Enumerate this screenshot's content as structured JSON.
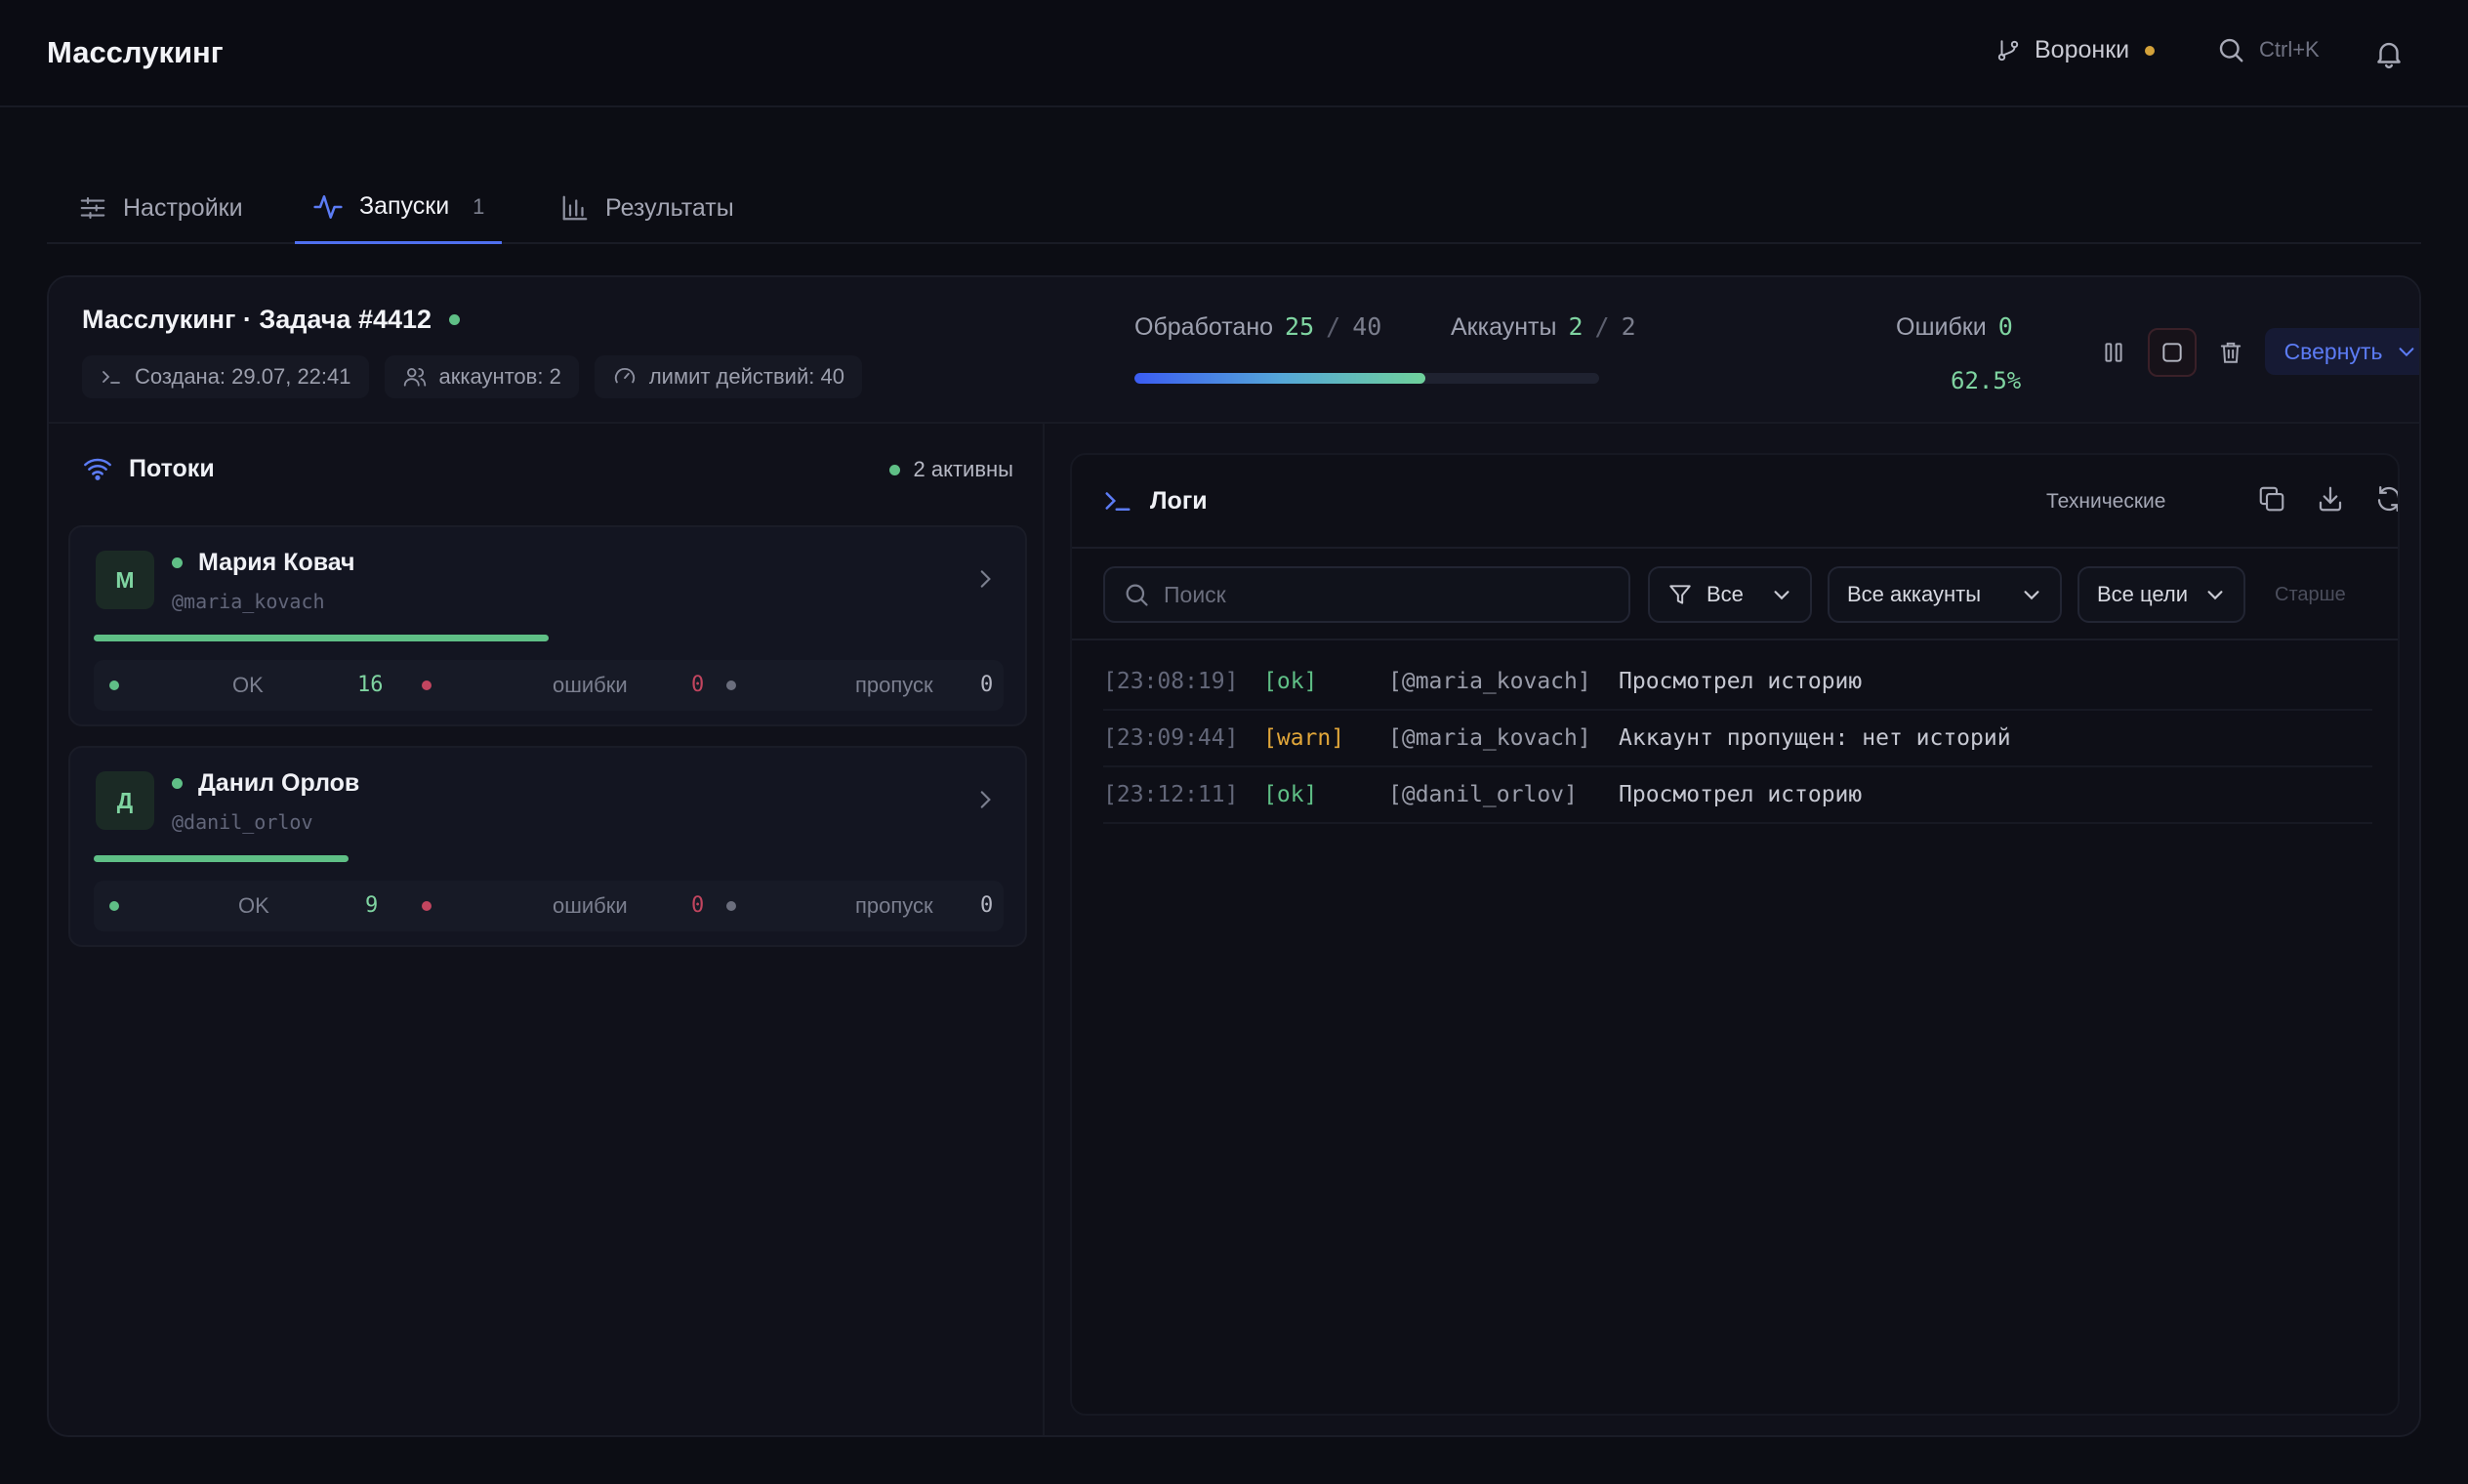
{
  "app": {
    "title": "Масслукинг"
  },
  "topbar": {
    "funnels_label": "Воронки",
    "search_shortcut": "Ctrl+K",
    "funnel_status_color": "#d4a23a"
  },
  "tabs": [
    {
      "label": "Настройки",
      "icon": "sliders-icon"
    },
    {
      "label": "Запуски",
      "icon": "activity-icon",
      "count": "1",
      "active": true
    },
    {
      "label": "Результаты",
      "icon": "bar-chart-icon"
    }
  ],
  "task": {
    "title": "Масслукинг · Задача #4412",
    "chips": {
      "created": "Создана: 29.07, 22:41",
      "accounts": "аккаунтов: 2",
      "limit": "лимит действий: 40"
    },
    "processed_label": "Обработано",
    "processed": "25",
    "processed_total": "40",
    "accounts_label": "Аккаунты",
    "accounts_value": "2",
    "accounts_total": "2",
    "errors_label": "Ошибки",
    "errors_value": "0",
    "percent": "62.5%",
    "progress": 0.625,
    "collapse_label": "Свернуть"
  },
  "threads": {
    "title": "Потоки",
    "active_label": "2 активны",
    "items": [
      {
        "initial": "М",
        "name": "Мария Ковач",
        "handle": "@maria_kovach",
        "progress": 0.5,
        "ok_label": "OK",
        "ok": "16",
        "err_label": "ошибки",
        "err": "0",
        "skip_label": "пропуск",
        "skip": "0"
      },
      {
        "initial": "Д",
        "name": "Данил Орлов",
        "handle": "@danil_orlov",
        "progress": 0.28,
        "ok_label": "OK",
        "ok": "9",
        "err_label": "ошибки",
        "err": "0",
        "skip_label": "пропуск",
        "skip": "0"
      }
    ]
  },
  "logs": {
    "title": "Логи",
    "technical_label": "Технические",
    "search_placeholder": "Поиск",
    "filter_level": "Все",
    "filter_accounts": "Все аккаунты",
    "filter_targets": "Все цели",
    "older_label": "Старше",
    "entries": [
      {
        "time": "[23:08:19]",
        "level": "[ok]",
        "account": "[@maria_kovach]",
        "message": "Просмотрел историю"
      },
      {
        "time": "[23:09:44]",
        "level": "[warn]",
        "account": "[@maria_kovach]",
        "message": "Аккаунт пропущен: нет историй"
      },
      {
        "time": "[23:12:11]",
        "level": "[ok]",
        "account": "[@danil_orlov]",
        "message": "Просмотрел историю"
      }
    ]
  }
}
